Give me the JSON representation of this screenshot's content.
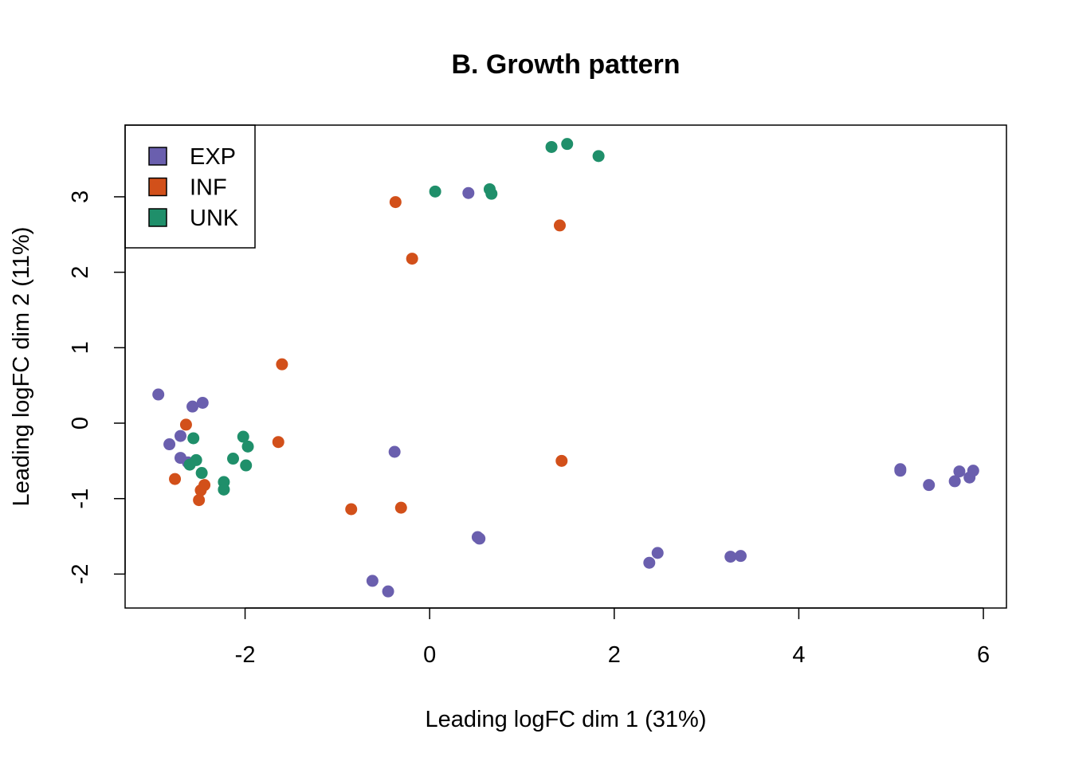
{
  "chart_data": {
    "type": "scatter",
    "title": "B. Growth pattern",
    "xlabel": "Leading logFC dim 1 (31%)",
    "ylabel": "Leading logFC dim 2 (11%)",
    "xlim": [
      -3.3,
      6.25
    ],
    "ylim": [
      -2.45,
      3.95
    ],
    "xticks": [
      -2,
      0,
      2,
      4,
      6
    ],
    "yticks": [
      -2,
      -1,
      0,
      1,
      2,
      3
    ],
    "xtick_labels": [
      "-2",
      "0",
      "2",
      "4",
      "6"
    ],
    "ytick_labels": [
      "-2",
      "-1",
      "0",
      "1",
      "2",
      "3"
    ],
    "grid": false,
    "legend_position": "top-left",
    "series": [
      {
        "name": "EXP",
        "color": "#6a5fae",
        "points": [
          [
            -2.94,
            0.38
          ],
          [
            -2.82,
            -0.28
          ],
          [
            -2.7,
            -0.17
          ],
          [
            -2.7,
            -0.46
          ],
          [
            -2.57,
            0.22
          ],
          [
            -2.46,
            0.27
          ],
          [
            -2.62,
            -0.52
          ],
          [
            -0.38,
            -0.38
          ],
          [
            0.42,
            3.05
          ],
          [
            0.52,
            -1.51
          ],
          [
            0.54,
            -1.53
          ],
          [
            -0.62,
            -2.09
          ],
          [
            -0.45,
            -2.23
          ],
          [
            2.38,
            -1.85
          ],
          [
            2.47,
            -1.72
          ],
          [
            3.26,
            -1.77
          ],
          [
            3.37,
            -1.76
          ],
          [
            5.1,
            -0.61
          ],
          [
            5.1,
            -0.63
          ],
          [
            5.41,
            -0.82
          ],
          [
            5.69,
            -0.77
          ],
          [
            5.74,
            -0.64
          ],
          [
            5.85,
            -0.72
          ],
          [
            5.89,
            -0.63
          ]
        ]
      },
      {
        "name": "INF",
        "color": "#d2501a",
        "points": [
          [
            -2.64,
            -0.02
          ],
          [
            -2.76,
            -0.74
          ],
          [
            -2.5,
            -1.02
          ],
          [
            -2.48,
            -0.89
          ],
          [
            -2.44,
            -0.82
          ],
          [
            -1.6,
            0.78
          ],
          [
            -1.64,
            -0.25
          ],
          [
            -0.85,
            -1.14
          ],
          [
            -0.31,
            -1.12
          ],
          [
            -0.37,
            2.93
          ],
          [
            -0.19,
            2.18
          ],
          [
            1.41,
            2.62
          ],
          [
            1.43,
            -0.5
          ]
        ]
      },
      {
        "name": "UNK",
        "color": "#1f8f6a",
        "points": [
          [
            -2.56,
            -0.2
          ],
          [
            -2.6,
            -0.55
          ],
          [
            -2.53,
            -0.49
          ],
          [
            -2.47,
            -0.66
          ],
          [
            -2.23,
            -0.78
          ],
          [
            -2.23,
            -0.88
          ],
          [
            -2.13,
            -0.47
          ],
          [
            -2.02,
            -0.18
          ],
          [
            -1.97,
            -0.31
          ],
          [
            -1.99,
            -0.56
          ],
          [
            0.06,
            3.07
          ],
          [
            0.65,
            3.1
          ],
          [
            0.67,
            3.04
          ],
          [
            1.32,
            3.66
          ],
          [
            1.49,
            3.7
          ],
          [
            1.83,
            3.54
          ]
        ]
      }
    ]
  }
}
